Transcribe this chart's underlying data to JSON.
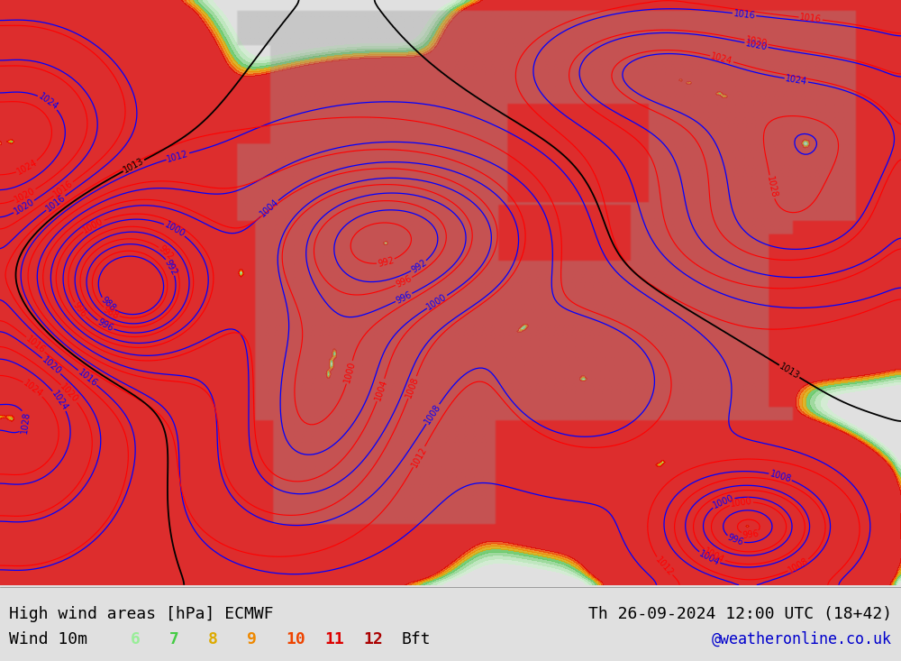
{
  "title_left": "High wind areas [hPa] ECMWF",
  "title_right": "Th 26-09-2024 12:00 UTC (18+42)",
  "subtitle_left": "Wind 10m",
  "subtitle_right": "@weatheronline.co.uk",
  "bft_labels": [
    "6",
    "7",
    "8",
    "9",
    "10",
    "11",
    "12",
    "Bft"
  ],
  "bft_colors": [
    "#99ee99",
    "#44cc44",
    "#ddaa00",
    "#ee8800",
    "#ee4400",
    "#dd0000",
    "#aa0000",
    "#000000"
  ],
  "background_color": "#e0e0e0",
  "map_bg": "#ffffff",
  "bottom_bar_color": "#d8d8d8",
  "title_fontsize": 13,
  "subtitle_fontsize": 13
}
